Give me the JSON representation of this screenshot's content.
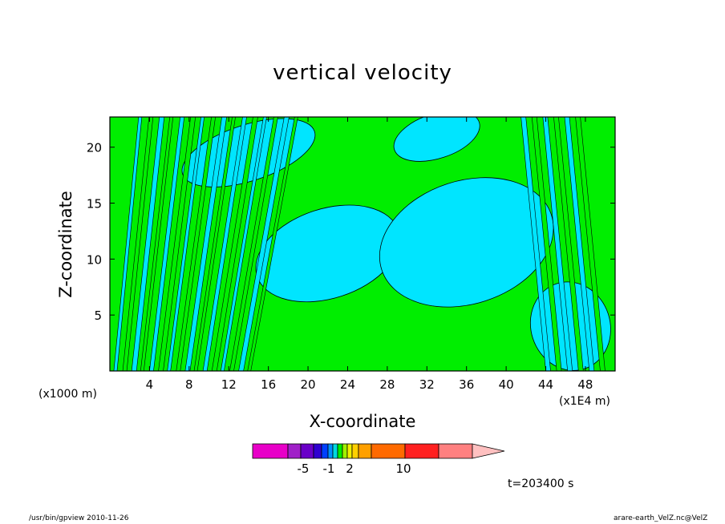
{
  "title": "vertical velocity",
  "footer": {
    "left": "/usr/bin/gpview   2010-11-26",
    "right": "arare-earth_VelZ.nc@VelZ"
  },
  "time_label": "t=203400 s",
  "chart_data": {
    "type": "heatmap",
    "title": "vertical velocity",
    "xlabel": "X-coordinate",
    "ylabel": "Z-coordinate",
    "x_unit_label": "(x1000 m)",
    "x_unit_label_2": "(x1E4 m)",
    "xlim": [
      0,
      51
    ],
    "ylim": [
      0,
      22.7
    ],
    "x_ticks": [
      4,
      8,
      12,
      16,
      20,
      24,
      28,
      32,
      36,
      40,
      44,
      48
    ],
    "y_ticks": [
      5,
      10,
      15,
      20
    ],
    "colors": {
      "negative": "#00e5ff",
      "positive": "#00ee00",
      "contour": "#000000"
    },
    "colorbar": {
      "colors": [
        "#e800c8",
        "#a020c8",
        "#6a00c8",
        "#3000d0",
        "#0040ff",
        "#0090ff",
        "#00d8e0",
        "#00ee00",
        "#a0f000",
        "#f0f000",
        "#ffd000",
        "#ffa000",
        "#ff6a00",
        "#ff2020",
        "#ff8080",
        "#ffc0c0"
      ],
      "tick_labels": [
        "-5",
        "-1",
        "2",
        "10"
      ]
    },
    "regions": {
      "downdraft_blobs": [
        {
          "x": 22,
          "z": 10.5,
          "rx": 7.5,
          "rz": 4.0
        },
        {
          "x": 36,
          "z": 11.5,
          "rx": 9.0,
          "rz": 5.5
        },
        {
          "x": 33,
          "z": 21.0,
          "rx": 4.5,
          "rz": 2.0
        },
        {
          "x": 46.5,
          "z": 4.0,
          "rx": 4.0,
          "rz": 4.0
        },
        {
          "x": 14,
          "z": 19.5,
          "rx": 7.0,
          "rz": 2.5
        }
      ]
    }
  }
}
